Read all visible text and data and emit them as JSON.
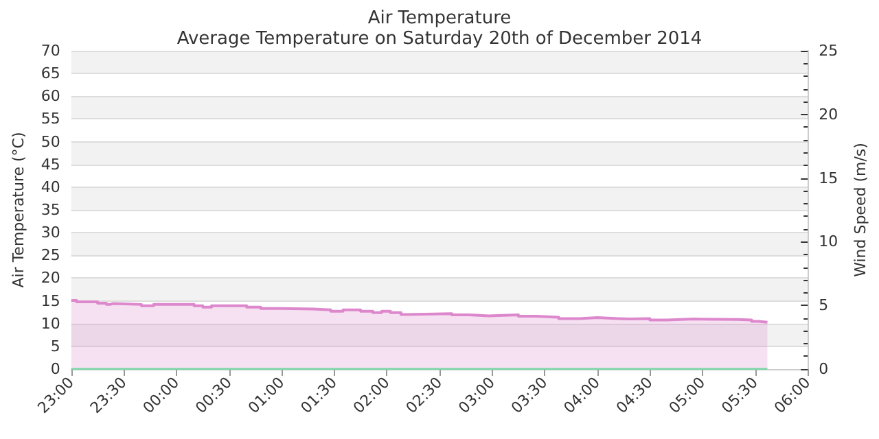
{
  "chart_data": {
    "type": "step",
    "title": "Air Temperature",
    "subtitle": "Average Temperature on Saturday 20th of December 2014",
    "ylabel": "Air Temperature (°C)",
    "y2label": "Wind Speed (m/s)",
    "xlim": [
      "2014-12-19T23:00",
      "2014-12-20T06:00"
    ],
    "xticks": [
      {
        "value": "2014-12-19T23:00",
        "label": "23:00"
      },
      {
        "value": "2014-12-19T23:30",
        "label": "23:30"
      },
      {
        "value": "2014-12-20T00:00",
        "label": "00:00"
      },
      {
        "value": "2014-12-20T00:30",
        "label": "00:30"
      },
      {
        "value": "2014-12-20T01:00",
        "label": "01:00"
      },
      {
        "value": "2014-12-20T01:30",
        "label": "01:30"
      },
      {
        "value": "2014-12-20T02:00",
        "label": "02:00"
      },
      {
        "value": "2014-12-20T02:30",
        "label": "02:30"
      },
      {
        "value": "2014-12-20T03:00",
        "label": "03:00"
      },
      {
        "value": "2014-12-20T03:30",
        "label": "03:30"
      },
      {
        "value": "2014-12-20T04:00",
        "label": "04:00"
      },
      {
        "value": "2014-12-20T04:30",
        "label": "04:30"
      },
      {
        "value": "2014-12-20T05:00",
        "label": "05:00"
      },
      {
        "value": "2014-12-20T05:30",
        "label": "05:30"
      },
      {
        "value": "2014-12-20T06:00",
        "label": "06:00"
      }
    ],
    "ylim": [
      0,
      70
    ],
    "yticks": [
      0,
      5,
      10,
      15,
      20,
      25,
      30,
      35,
      40,
      45,
      50,
      55,
      60,
      65,
      70
    ],
    "y2lim": [
      0,
      25
    ],
    "y2ticks": [
      0,
      5,
      10,
      15,
      20,
      25
    ],
    "grid": "y",
    "marker": "none",
    "series": [
      {
        "type": "area",
        "color": "#dd88cc",
        "x": [
          "2014-12-19T23:00",
          "2014-12-19T23:03",
          "2014-12-19T23:15",
          "2014-12-19T23:20",
          "2014-12-19T23:22",
          "2014-12-19T23:24",
          "2014-12-19T23:40",
          "2014-12-19T23:47",
          "2014-12-20T00:10",
          "2014-12-20T00:15",
          "2014-12-20T00:20",
          "2014-12-20T00:40",
          "2014-12-20T00:48",
          "2014-12-20T01:00",
          "2014-12-20T01:18",
          "2014-12-20T01:28",
          "2014-12-20T01:35",
          "2014-12-20T01:45",
          "2014-12-20T01:52",
          "2014-12-20T01:57",
          "2014-12-20T02:02",
          "2014-12-20T02:08",
          "2014-12-20T02:12",
          "2014-12-20T02:37",
          "2014-12-20T02:47",
          "2014-12-20T02:58",
          "2014-12-20T03:15",
          "2014-12-20T03:25",
          "2014-12-20T03:38",
          "2014-12-20T03:50",
          "2014-12-20T04:00",
          "2014-12-20T04:12",
          "2014-12-20T04:18",
          "2014-12-20T04:30",
          "2014-12-20T04:40",
          "2014-12-20T04:55",
          "2014-12-20T05:20",
          "2014-12-20T05:28",
          "2014-12-20T05:32",
          "2014-12-20T05:37"
        ],
        "values": [
          15.1,
          14.8,
          14.5,
          14.2,
          14.4,
          14.2,
          13.9,
          14.2,
          13.9,
          13.6,
          13.9,
          13.6,
          13.3,
          13.2,
          13.0,
          12.7,
          13.0,
          12.7,
          12.4,
          12.7,
          12.4,
          12.0,
          12.2,
          11.9,
          11.7,
          11.9,
          11.6,
          11.4,
          11.1,
          11.3,
          11.1,
          11.0,
          11.1,
          10.8,
          11.0,
          10.9,
          10.8,
          10.5,
          10.3,
          10.3
        ]
      },
      {
        "color": "#7fd6a8",
        "x": [
          "2014-12-19T23:00",
          "2014-12-20T05:37"
        ],
        "values": [
          0,
          0
        ]
      }
    ]
  }
}
